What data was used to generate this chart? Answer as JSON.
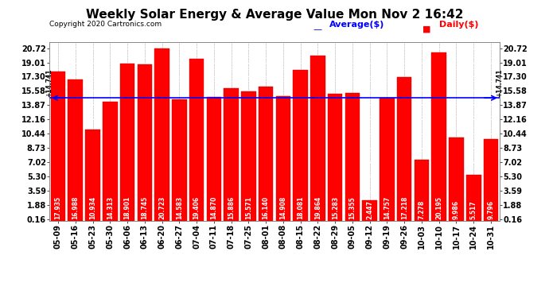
{
  "title": "Weekly Solar Energy & Average Value Mon Nov 2 16:42",
  "copyright": "Copyright 2020 Cartronics.com",
  "legend_average": "Average($)",
  "legend_daily": "Daily($)",
  "average_value": 14.741,
  "categories": [
    "05-09",
    "05-16",
    "05-23",
    "05-30",
    "06-06",
    "06-13",
    "06-20",
    "06-27",
    "07-04",
    "07-11",
    "07-18",
    "07-25",
    "08-01",
    "08-08",
    "08-15",
    "08-22",
    "08-29",
    "09-05",
    "09-12",
    "09-19",
    "09-26",
    "10-03",
    "10-10",
    "10-17",
    "10-24",
    "10-31"
  ],
  "values": [
    17.935,
    16.988,
    10.934,
    14.313,
    18.901,
    18.745,
    20.723,
    14.583,
    19.406,
    14.87,
    15.886,
    15.571,
    16.14,
    14.908,
    18.081,
    19.864,
    15.283,
    15.355,
    2.447,
    14.757,
    17.218,
    7.278,
    20.195,
    9.986,
    5.517,
    9.796
  ],
  "bar_color": "#ff0000",
  "average_line_color": "#0000ff",
  "yticks": [
    0.16,
    1.88,
    3.59,
    5.3,
    7.02,
    8.73,
    10.44,
    12.16,
    13.87,
    15.58,
    17.3,
    19.01,
    20.72
  ],
  "ylim_max": 21.5,
  "background_color": "#ffffff",
  "grid_color": "#cccccc",
  "title_fontsize": 11,
  "bar_value_fontsize": 5.5,
  "tick_fontsize": 7,
  "copyright_fontsize": 6.5,
  "legend_fontsize": 8
}
